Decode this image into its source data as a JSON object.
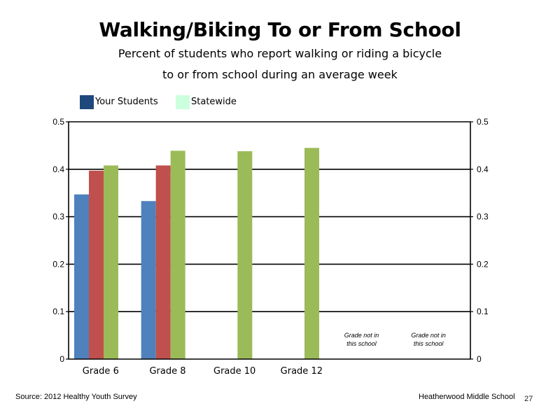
{
  "header": {
    "title": "Walking/Biking To or From School",
    "subtitle_line1": "Percent of students who report walking or riding a bicycle",
    "subtitle_line2": "to or from school during an average week"
  },
  "legend": {
    "items": [
      {
        "label": "Your Students",
        "color": "#1f497d"
      },
      {
        "label": "Statewide",
        "color": "#ccffdd"
      }
    ]
  },
  "chart_data": {
    "type": "bar",
    "categories": [
      "Grade 6",
      "Grade 8",
      "Grade 10",
      "Grade 12",
      "",
      ""
    ],
    "series": [
      {
        "color": "#4f81bd",
        "values": [
          0.347,
          0.333,
          null,
          null,
          null,
          null
        ]
      },
      {
        "color": "#c0504d",
        "values": [
          0.397,
          0.408,
          null,
          null,
          null,
          null
        ]
      },
      {
        "color": "#9bbb59",
        "values": [
          0.408,
          0.439,
          0.438,
          0.445,
          null,
          null
        ]
      }
    ],
    "ylim": [
      0,
      0.5
    ],
    "yticks": [
      0,
      0.1,
      0.2,
      0.3,
      0.4,
      0.5
    ],
    "ytick_labels": [
      "0",
      "0.1",
      "0.2",
      "0.3",
      "0.4",
      "0.5"
    ],
    "secondary_ytick_labels": [
      "0",
      "0.1",
      "0.2",
      "0.3",
      "0.4",
      "0.5"
    ],
    "grid": true,
    "annotations": [
      {
        "category_index": 4,
        "lines": [
          "Grade not in",
          "this school"
        ]
      },
      {
        "category_index": 5,
        "lines": [
          "Grade not in",
          "this school"
        ]
      }
    ]
  },
  "footer": {
    "source": "Source: 2012 Healthy Youth Survey",
    "school": "Heatherwood Middle  School",
    "page_number": "27"
  }
}
